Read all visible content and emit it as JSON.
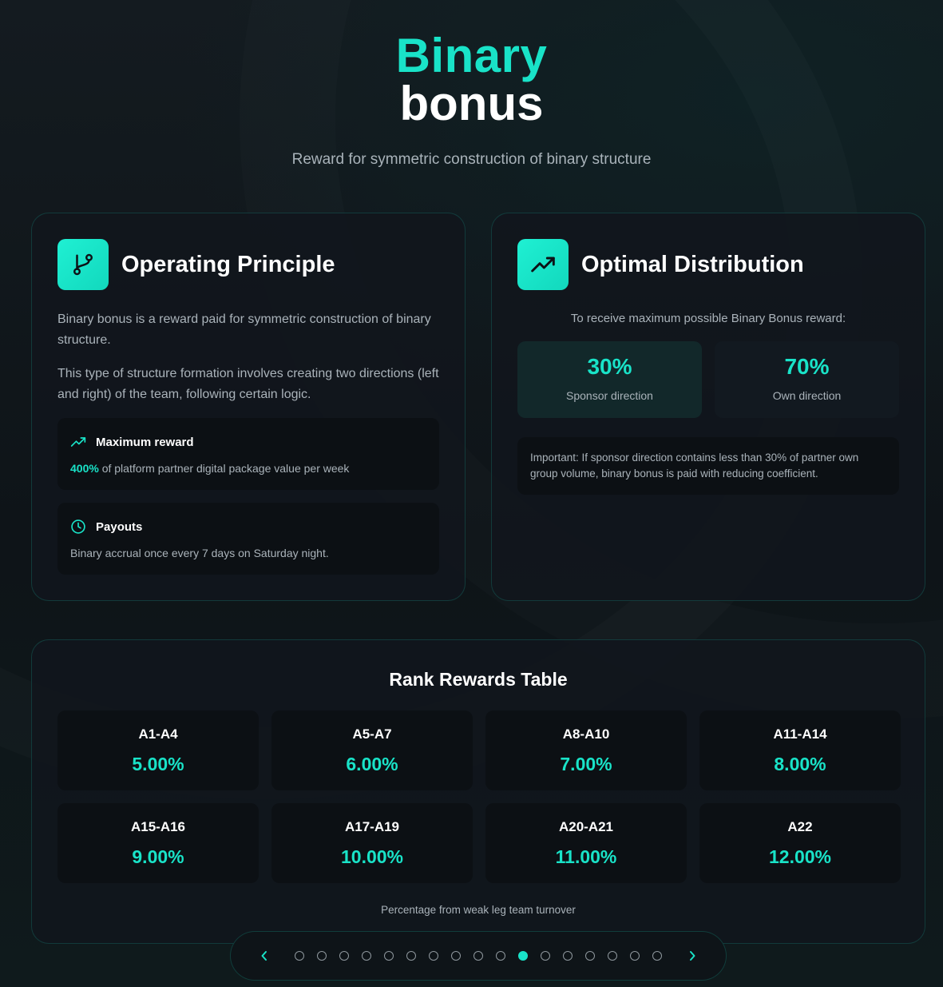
{
  "hero": {
    "title_line1": "Binary",
    "title_line2": "bonus",
    "subtitle": "Reward for symmetric construction of binary structure"
  },
  "operating": {
    "icon": "git-branch-icon",
    "title": "Operating Principle",
    "para1": "Binary bonus is a reward paid for symmetric construction of binary structure.",
    "para2": "This type of structure formation involves creating two directions (left and right) of the team, following certain logic.",
    "max_reward": {
      "icon": "trending-up-icon",
      "title": "Maximum reward",
      "highlight": "400%",
      "text": " of platform partner digital package value per week"
    },
    "payouts": {
      "icon": "clock-icon",
      "title": "Payouts",
      "text": "Binary accrual once every 7 days on Saturday night."
    }
  },
  "optimal": {
    "icon": "trending-up-icon",
    "title": "Optimal Distribution",
    "lead": "To receive maximum possible Binary Bonus reward:",
    "sponsor": {
      "pct": "30%",
      "label": "Sponsor direction"
    },
    "own": {
      "pct": "70%",
      "label": "Own direction"
    },
    "note": "Important: If sponsor direction contains less than 30% of partner own group volume, binary bonus is paid with reducing coefficient."
  },
  "ranks": {
    "title": "Rank Rewards Table",
    "items": [
      {
        "name": "A1-A4",
        "value": "5.00%"
      },
      {
        "name": "A5-A7",
        "value": "6.00%"
      },
      {
        "name": "A8-A10",
        "value": "7.00%"
      },
      {
        "name": "A11-A14",
        "value": "8.00%"
      },
      {
        "name": "A15-A16",
        "value": "9.00%"
      },
      {
        "name": "A17-A19",
        "value": "10.00%"
      },
      {
        "name": "A20-A21",
        "value": "11.00%"
      },
      {
        "name": "A22",
        "value": "12.00%"
      }
    ],
    "footnote": "Percentage from weak leg team turnover"
  },
  "pager": {
    "total": 17,
    "active_index": 10,
    "colors": {
      "accent": "#19e3c8",
      "dot": "#8e979d"
    }
  }
}
